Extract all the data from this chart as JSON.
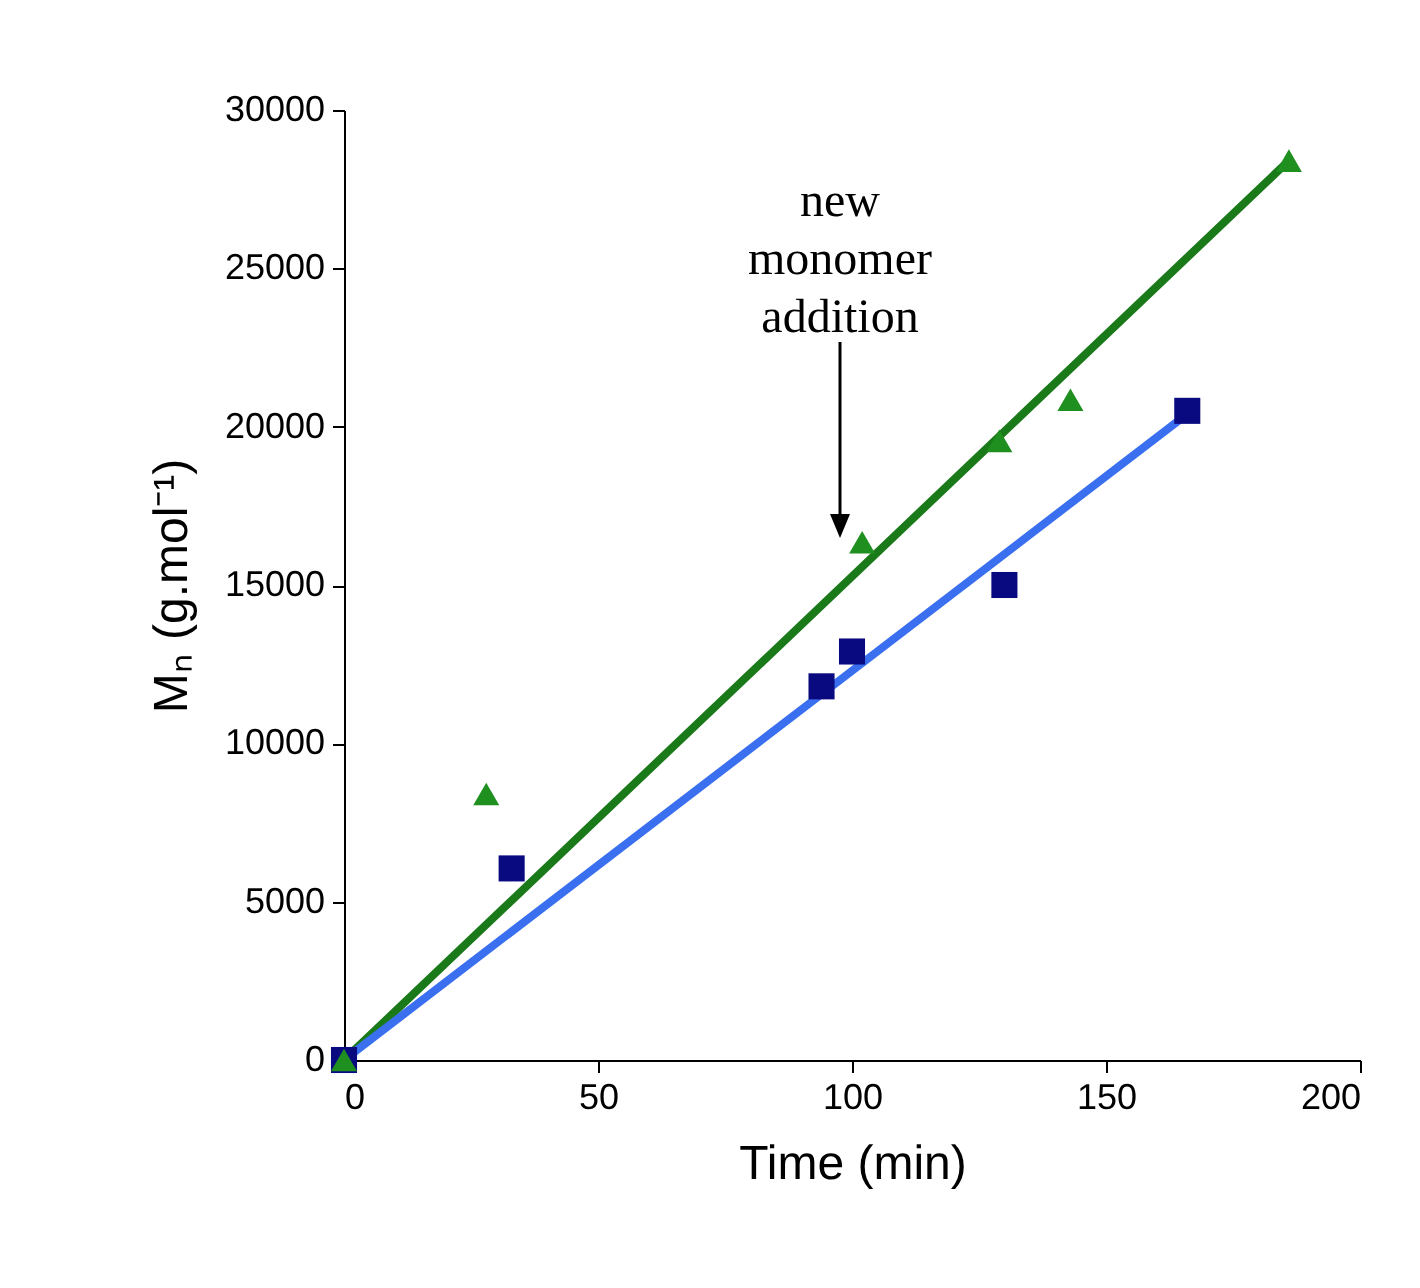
{
  "chart_data": {
    "type": "scatter",
    "xlabel": "Time (min)",
    "ylabel": "Mₙ (g.mol⁻¹)",
    "xlim": [
      0,
      200
    ],
    "xticks": [
      0,
      50,
      100,
      150,
      200
    ],
    "ylim": [
      0,
      30000
    ],
    "yticks": [
      0,
      5000,
      10000,
      15000,
      20000,
      25000,
      30000
    ],
    "grid": false,
    "series": [
      {
        "type": "line",
        "color": "#1a7a1a",
        "x": [
          0,
          186
        ],
        "values": [
          0,
          28400
        ]
      },
      {
        "type": "line",
        "color": "#3a6ff0",
        "x": [
          0,
          166
        ],
        "values": [
          0,
          20400
        ]
      },
      {
        "marker": "square",
        "color": "#0a0a80",
        "x": [
          0,
          33,
          94,
          100,
          130,
          166
        ],
        "values": [
          0,
          6050,
          11800,
          12900,
          15000,
          20500
        ]
      },
      {
        "marker": "triangle",
        "color": "#1f8f1f",
        "x": [
          0,
          28,
          102,
          129,
          143,
          186
        ],
        "values": [
          0,
          8400,
          16350,
          19550,
          20850,
          28400
        ]
      }
    ],
    "annotations": [
      "new monomer addition"
    ]
  }
}
